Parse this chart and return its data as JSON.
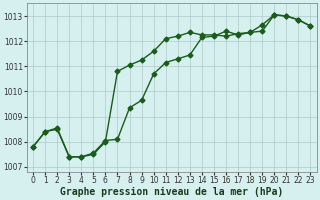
{
  "xlabel": "Graphe pression niveau de la mer (hPa)",
  "bg_color": "#d6f0f0",
  "grid_color": "#b0c8c8",
  "line_color": "#1a5c1a",
  "ylim": [
    1006.8,
    1013.5
  ],
  "xlim": [
    -0.5,
    23.5
  ],
  "yticks": [
    1007,
    1008,
    1009,
    1010,
    1011,
    1012,
    1013
  ],
  "xticks": [
    0,
    1,
    2,
    3,
    4,
    5,
    6,
    7,
    8,
    9,
    10,
    11,
    12,
    13,
    14,
    15,
    16,
    17,
    18,
    19,
    20,
    21,
    22,
    23
  ],
  "series1_x": [
    0,
    1,
    2,
    3,
    4,
    5,
    6,
    7,
    8,
    9,
    10,
    11,
    12,
    13,
    14,
    15,
    16,
    17,
    18,
    19,
    20,
    21,
    22,
    23
  ],
  "series1_y": [
    1007.8,
    1008.4,
    1008.5,
    1007.4,
    1007.4,
    1007.5,
    1008.0,
    1010.8,
    1011.05,
    1011.25,
    1011.6,
    1012.1,
    1012.2,
    1012.35,
    1012.25,
    1012.25,
    1012.2,
    1012.3,
    1012.35,
    1012.65,
    1013.05,
    1013.0,
    1012.85,
    1012.6
  ],
  "series2_x": [
    0,
    1,
    2,
    3,
    4,
    5,
    6,
    7,
    8,
    9,
    10,
    11,
    12,
    13,
    14,
    15,
    16,
    17,
    18,
    19,
    20,
    21,
    22,
    23
  ],
  "series2_y": [
    1007.8,
    1008.4,
    1008.55,
    1007.4,
    1007.4,
    1007.55,
    1008.05,
    1008.1,
    1009.35,
    1009.65,
    1010.7,
    1011.15,
    1011.3,
    1011.45,
    1012.15,
    1012.2,
    1012.4,
    1012.25,
    1012.35,
    1012.4,
    1013.05,
    1013.0,
    1012.85,
    1012.6
  ],
  "marker": "D",
  "markersize": 2.5,
  "linewidth": 1.0,
  "xlabel_fontsize": 7,
  "tick_fontsize": 5.5
}
